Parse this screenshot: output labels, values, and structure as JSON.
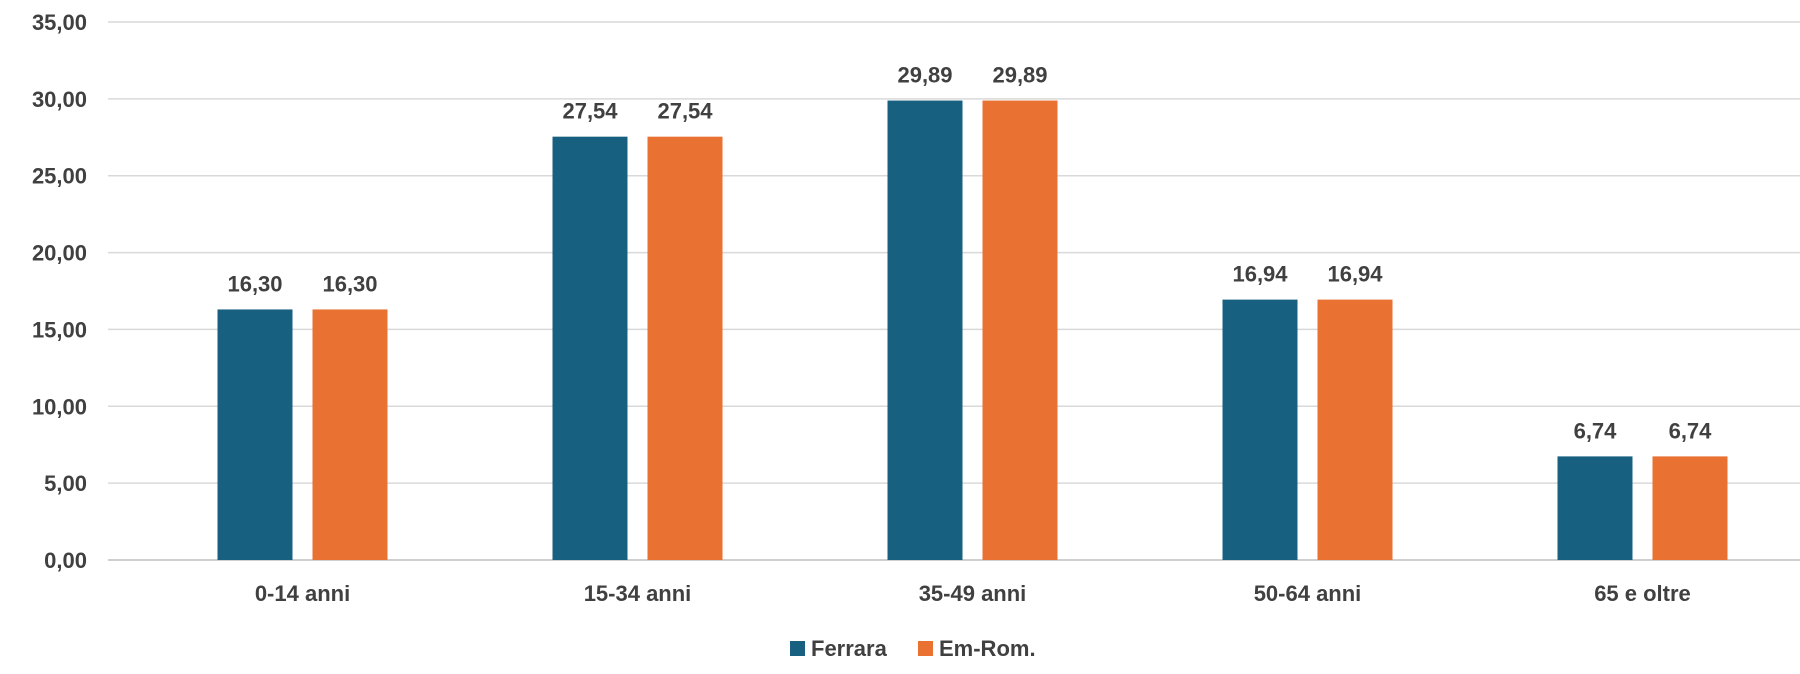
{
  "chart_data": {
    "type": "bar",
    "categories": [
      "0-14 anni",
      "15-34 anni",
      "35-49 anni",
      "50-64 anni",
      "65 e oltre"
    ],
    "series": [
      {
        "name": "Ferrara",
        "color": "#17607f",
        "values": [
          16.3,
          27.54,
          29.89,
          16.94,
          6.74
        ]
      },
      {
        "name": "Em-Rom.",
        "color": "#e97132",
        "values": [
          16.3,
          27.54,
          29.89,
          16.94,
          6.74
        ]
      }
    ],
    "data_labels": [
      [
        "16,30",
        "27,54",
        "29,89",
        "16,94",
        "6,74"
      ],
      [
        "16,30",
        "27,54",
        "29,89",
        "16,94",
        "6,74"
      ]
    ],
    "y_ticks": [
      {
        "value": 0,
        "label": "0,00"
      },
      {
        "value": 5,
        "label": "5,00"
      },
      {
        "value": 10,
        "label": "10,00"
      },
      {
        "value": 15,
        "label": "15,00"
      },
      {
        "value": 20,
        "label": "20,00"
      },
      {
        "value": 25,
        "label": "25,00"
      },
      {
        "value": 30,
        "label": "30,00"
      },
      {
        "value": 35,
        "label": "35,00"
      }
    ],
    "ylim": [
      0,
      35
    ],
    "grid": true,
    "legend_position": "bottom",
    "title": "",
    "xlabel": "",
    "ylabel": ""
  }
}
